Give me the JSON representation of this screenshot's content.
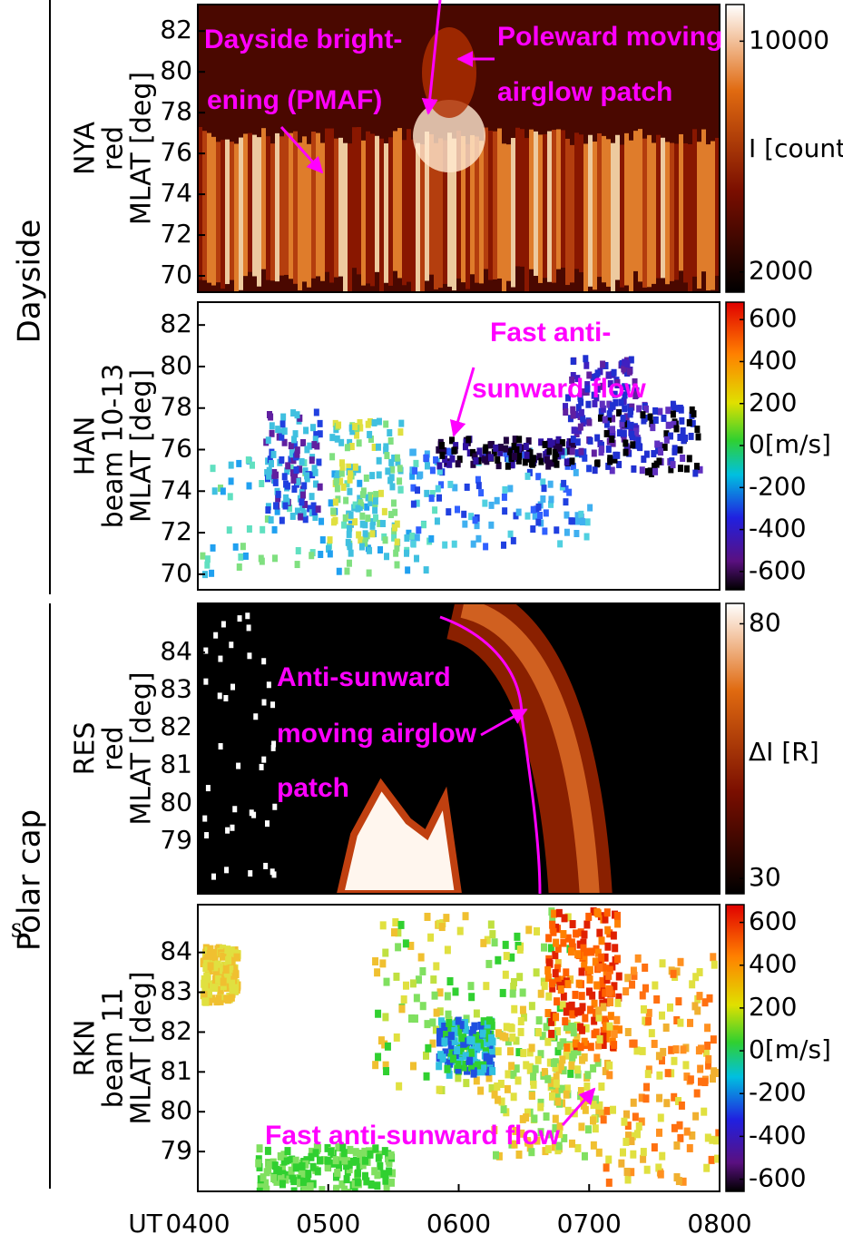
{
  "stray_text": "s",
  "sections": [
    "Dayside",
    "Polar cap"
  ],
  "x_axis": {
    "label": "UT",
    "ticks": [
      "0400",
      "0500",
      "0600",
      "0700",
      "0800"
    ]
  },
  "panels": [
    {
      "ylabel": [
        "NYA",
        "red",
        "MLAT [deg]"
      ],
      "ylim": [
        69.2,
        83.3
      ],
      "yticks": [
        70,
        72,
        74,
        76,
        78,
        80,
        82
      ],
      "colorbar": {
        "label": "I [count",
        "lim": [
          1300,
          11270
        ],
        "ticks": [
          2000,
          10000
        ]
      },
      "annotations": [
        "Dayside bright-",
        "ening (PMAF)",
        "Poleward moving",
        "airglow patch"
      ]
    },
    {
      "ylabel": [
        "HAN",
        "beam 10-13",
        "MLAT [deg]"
      ],
      "ylim": [
        69.25,
        83.1
      ],
      "yticks": [
        70,
        72,
        74,
        76,
        78,
        80,
        82
      ],
      "colorbar": {
        "lim": [
          -687,
          683
        ],
        "ticks": [
          600,
          400,
          200,
          {
            "value": 0,
            "label": "0[m/s]"
          },
          -200,
          -400,
          -600
        ]
      },
      "annotations": [
        "Fast anti-",
        "sunward flow"
      ]
    },
    {
      "ylabel": [
        "RES",
        "red",
        "MLAT [deg]"
      ],
      "ylim": [
        77.6,
        85.3
      ],
      "yticks": [
        79,
        80,
        81,
        82,
        83,
        84
      ],
      "colorbar": {
        "label": "ΔI [R]",
        "lim": [
          27,
          84
        ],
        "ticks": [
          80,
          30
        ]
      },
      "annotations": [
        "Anti-sunward",
        "moving airglow",
        "patch"
      ]
    },
    {
      "ylabel": [
        "RKN",
        "beam 11",
        "MLAT [deg]"
      ],
      "ylim": [
        78.0,
        85.2
      ],
      "yticks": [
        79,
        80,
        81,
        82,
        83,
        84
      ],
      "colorbar": {
        "lim": [
          -657,
          683
        ],
        "ticks": [
          600,
          400,
          200,
          {
            "value": 0,
            "label": "0[m/s]"
          },
          -200,
          -400,
          -600
        ]
      },
      "annotations": [
        "Fast anti-sunward flow"
      ]
    }
  ]
}
